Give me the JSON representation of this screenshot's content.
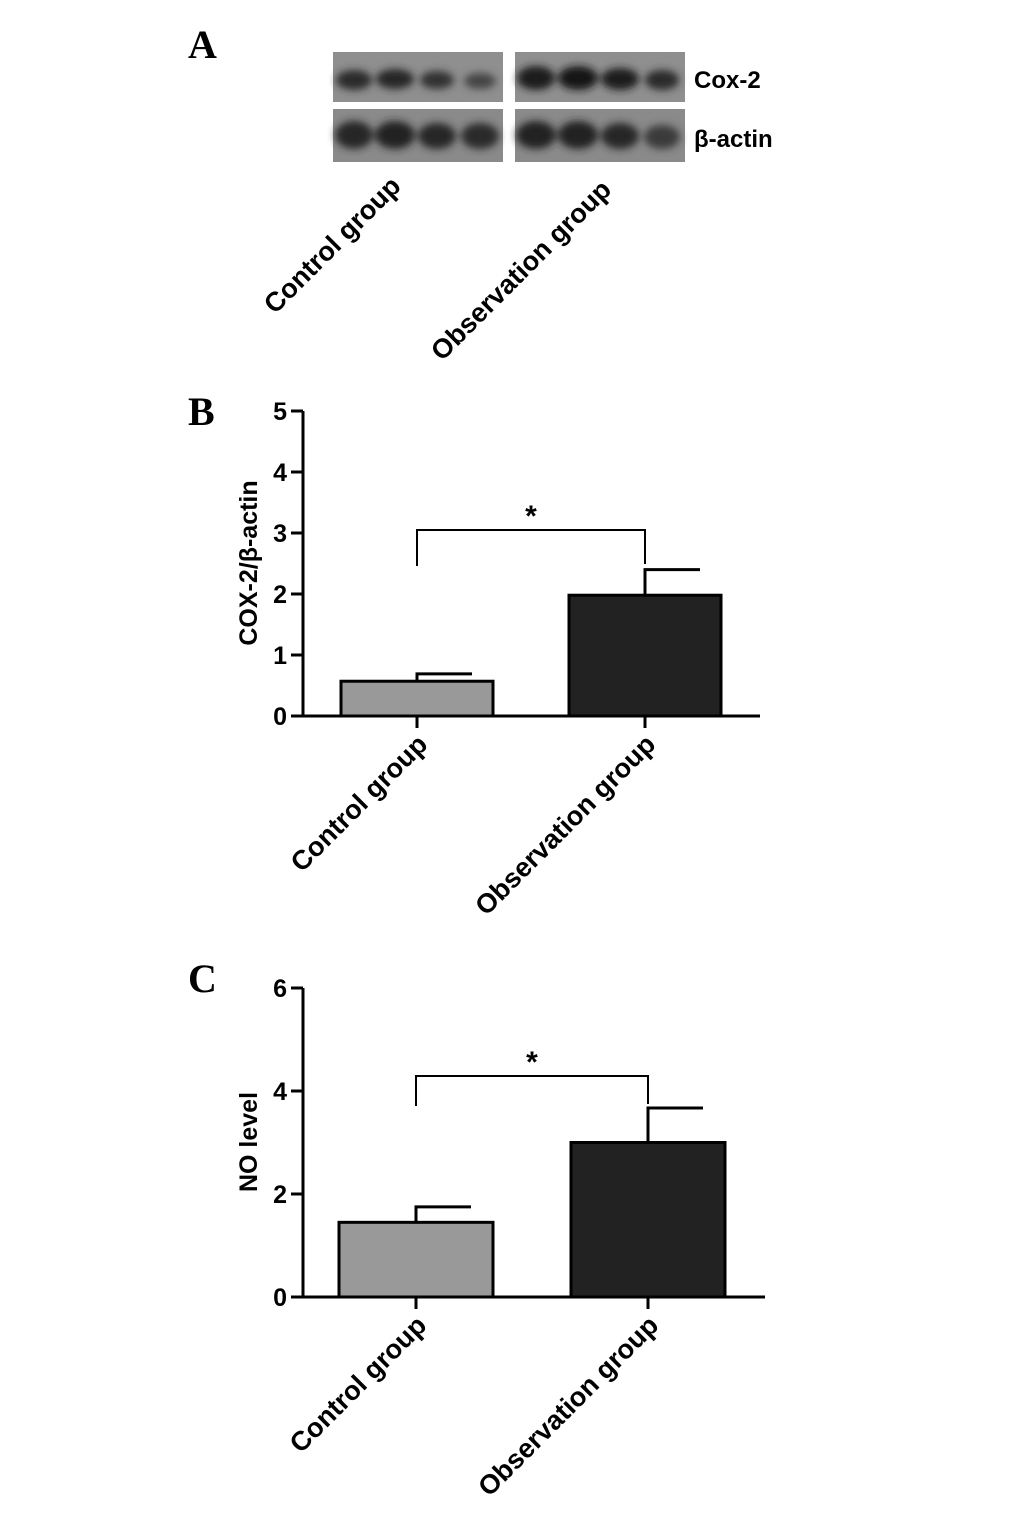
{
  "panelA": {
    "letter": "A",
    "band_labels": [
      "Cox-2",
      "β-actin"
    ],
    "group_labels": [
      "Control group",
      "Observation group"
    ]
  },
  "chart_data": [
    {
      "type": "bar",
      "panel": "B",
      "categories": [
        "Control group",
        "Observation group"
      ],
      "values": [
        0.57,
        1.98
      ],
      "errors": [
        0.12,
        0.42
      ],
      "colors": [
        "#999999",
        "#222222"
      ],
      "ylabel": "COX-2/β-actin",
      "ylim": [
        0,
        5
      ],
      "yticks": [
        0,
        1,
        2,
        3,
        4,
        5
      ],
      "significance": "*",
      "grid": false,
      "legend": "none"
    },
    {
      "type": "bar",
      "panel": "C",
      "categories": [
        "Control group",
        "Observation group"
      ],
      "values": [
        1.45,
        3.0
      ],
      "errors": [
        0.3,
        0.67
      ],
      "colors": [
        "#999999",
        "#222222"
      ],
      "ylabel": "NO level",
      "ylim": [
        0,
        6
      ],
      "yticks": [
        0,
        2,
        4,
        6
      ],
      "significance": "*",
      "grid": false,
      "legend": "none"
    }
  ]
}
